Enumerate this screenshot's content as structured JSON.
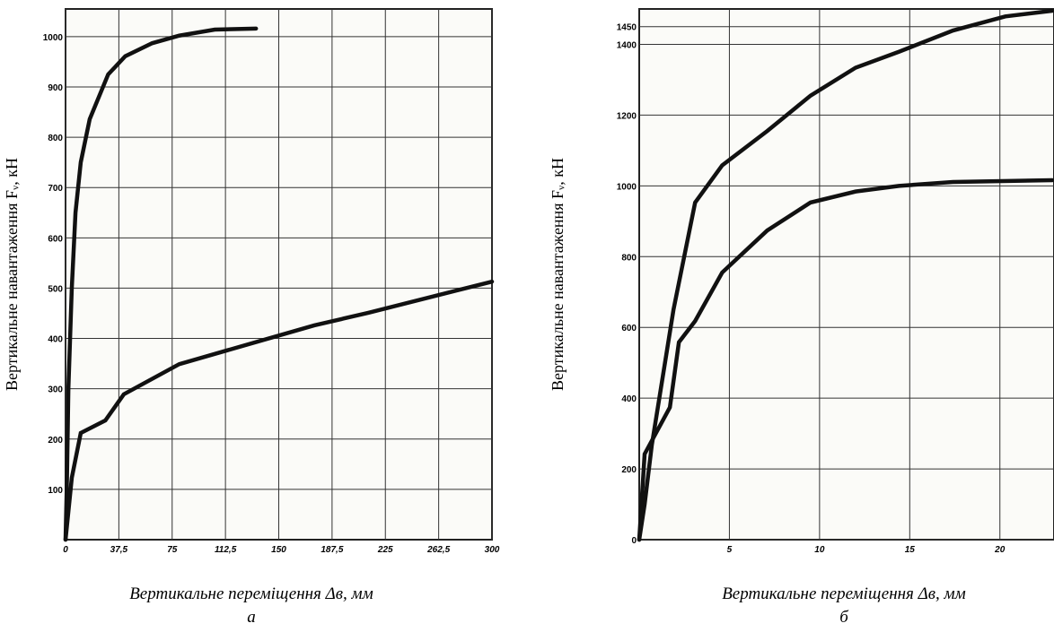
{
  "chart_data": [
    {
      "type": "line",
      "panel_label": "а",
      "x_label": "Вертикальне переміщення Δв, мм",
      "y_label": "Вертикальне  навантаження Fᵥ, кН",
      "xlim": [
        0,
        300
      ],
      "ylim": [
        0,
        1055
      ],
      "xticks": [
        0,
        {
          "value": 37.5,
          "label": "37,5"
        },
        75,
        {
          "value": 112.5,
          "label": "112,5"
        },
        150,
        {
          "value": 187.5,
          "label": "187,5"
        },
        225,
        {
          "value": 262.5,
          "label": "262,5"
        },
        300
      ],
      "yticks": [
        100,
        200,
        300,
        400,
        500,
        600,
        700,
        800,
        900,
        1000
      ],
      "grid": true,
      "series": [
        {
          "color": "#111111",
          "x": [
            0,
            1,
            2,
            4.4,
            7,
            10.7,
            17,
            30,
            42,
            61,
            80,
            105,
            134
          ],
          "values": [
            0,
            120,
            300,
            500,
            650,
            750,
            836,
            925,
            961,
            987,
            1002,
            1014,
            1016
          ]
        },
        {
          "color": "#111111",
          "x": [
            0,
            4.4,
            10.7,
            28,
            41,
            80,
            175,
            213,
            300
          ],
          "values": [
            0,
            123,
            212,
            237,
            289,
            349,
            426,
            451,
            513
          ]
        }
      ]
    },
    {
      "type": "line",
      "panel_label": "б",
      "x_label": "Вертикальне переміщення Δв, мм",
      "y_label": "Вертикальне  навантаження Fᵥ, кН",
      "xlim": [
        0,
        23
      ],
      "ylim": [
        0,
        1500
      ],
      "xticks": [
        5,
        10,
        15,
        20
      ],
      "yticks": [
        0,
        200,
        400,
        600,
        800,
        1000,
        1200,
        1400,
        1450
      ],
      "grid": true,
      "series": [
        {
          "color": "#111111",
          "x": [
            0,
            0.3,
            0.7,
            1.9,
            3.1,
            4.6,
            7.1,
            9.5,
            12,
            14.4,
            17.4,
            20.3,
            22.9
          ],
          "values": [
            0,
            100,
            268,
            650,
            953,
            1058,
            1155,
            1255,
            1334,
            1379,
            1439,
            1479,
            1495
          ]
        },
        {
          "color": "#111111",
          "x": [
            0,
            0.3,
            1.7,
            2.2,
            3.1,
            4.6,
            7.1,
            9.5,
            12,
            14.4,
            17.4,
            22.9
          ],
          "values": [
            0,
            242,
            374,
            558,
            618,
            755,
            874,
            953,
            984,
            1000,
            1011,
            1016
          ]
        }
      ]
    }
  ]
}
